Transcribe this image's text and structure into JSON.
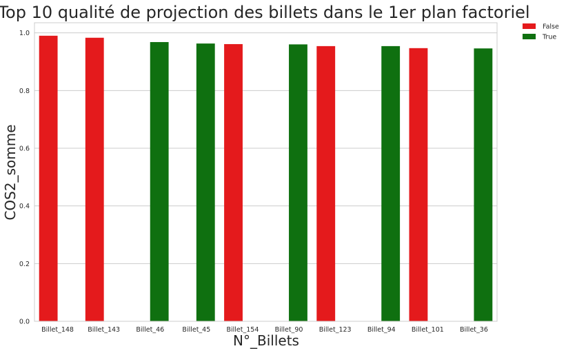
{
  "chart_data": {
    "type": "bar",
    "title": "Top 10 qualité de projection des billets dans le 1er plan factoriel",
    "xlabel": "N°_Billets",
    "ylabel": "COS2_somme",
    "ylim": [
      0,
      1.035
    ],
    "yticks": [
      0.0,
      0.2,
      0.4,
      0.6,
      0.8,
      1.0
    ],
    "ytick_labels": [
      "0.0",
      "0.2",
      "0.4",
      "0.6",
      "0.8",
      "1.0"
    ],
    "grid": true,
    "legend_position": "outside-top-right",
    "categories": [
      "Billet_148",
      "Billet_143",
      "Billet_46",
      "Billet_45",
      "Billet_154",
      "Billet_90",
      "Billet_123",
      "Billet_94",
      "Billet_101",
      "Billet_36"
    ],
    "series": [
      {
        "name": "False",
        "color": "#e41a1c",
        "values": [
          0.99,
          0.983,
          null,
          null,
          0.961,
          null,
          0.954,
          null,
          0.947,
          null
        ]
      },
      {
        "name": "True",
        "color": "#0f7010",
        "values": [
          null,
          null,
          0.968,
          0.963,
          null,
          0.96,
          null,
          0.954,
          null,
          0.946
        ]
      }
    ]
  }
}
